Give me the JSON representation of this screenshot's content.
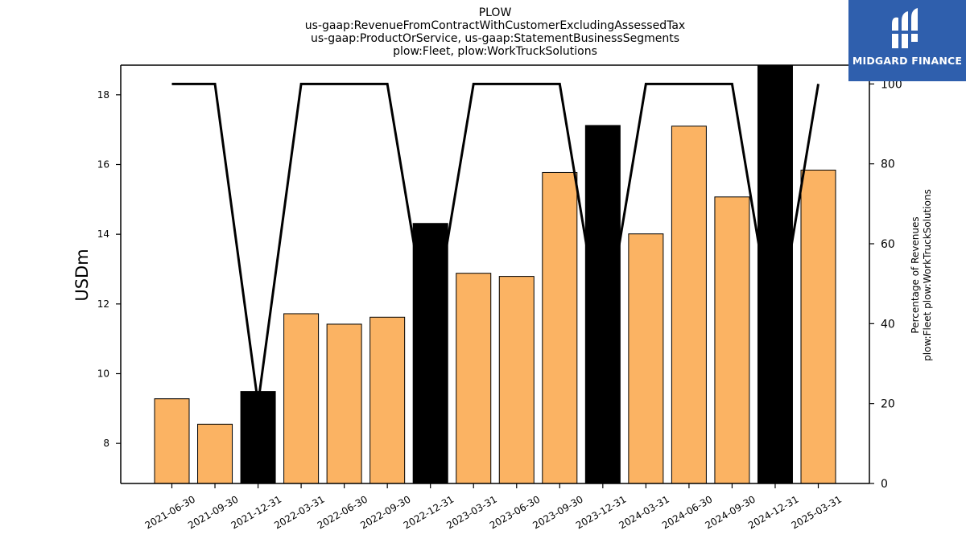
{
  "chart_data": {
    "type": "bar",
    "title_lines": [
      "PLOW",
      "us-gaap:RevenueFromContractWithCustomerExcludingAssessedTax",
      "us-gaap:ProductOrService, us-gaap:StatementBusinessSegments",
      "plow:Fleet, plow:WorkTruckSolutions"
    ],
    "ylabel_left": "USDm",
    "ylabel_right_lines": [
      "Percentage of Revenues",
      "plow:Fleet plow:WorkTruckSolutions"
    ],
    "categories": [
      "2021-06-30",
      "2021-09-30",
      "2021-12-31",
      "2022-03-31",
      "2022-06-30",
      "2022-09-30",
      "2022-12-31",
      "2023-03-31",
      "2023-06-30",
      "2023-09-30",
      "2023-12-31",
      "2024-03-31",
      "2024-06-30",
      "2024-09-30",
      "2024-12-31",
      "2025-03-31"
    ],
    "series": [
      {
        "values": [
          9.28,
          8.55,
          9.49,
          11.72,
          11.42,
          11.62,
          14.31,
          12.88,
          12.79,
          15.77,
          17.12,
          14.01,
          17.1,
          15.07,
          18.84,
          15.84
        ],
        "highlight": [
          false,
          false,
          true,
          false,
          false,
          false,
          true,
          false,
          false,
          false,
          true,
          false,
          false,
          false,
          true,
          false
        ],
        "axis": "left"
      },
      {
        "values": [
          100,
          100,
          20,
          100,
          100,
          100,
          35,
          100,
          100,
          100,
          35,
          100,
          100,
          100,
          35,
          100
        ],
        "axis": "right"
      }
    ],
    "y_left": {
      "lim": [
        6.85,
        18.85
      ],
      "ticks": [
        8,
        10,
        12,
        14,
        16,
        18
      ]
    },
    "y_right": {
      "lim": [
        0,
        104.7
      ],
      "ticks": [
        0,
        20,
        40,
        60,
        80,
        100
      ]
    },
    "colors": {
      "bar": "#fbb363",
      "bar_highlight": "#000000",
      "line": "#000000"
    },
    "grid": false
  },
  "logo": {
    "text": "MIDGARD FINANCE"
  }
}
